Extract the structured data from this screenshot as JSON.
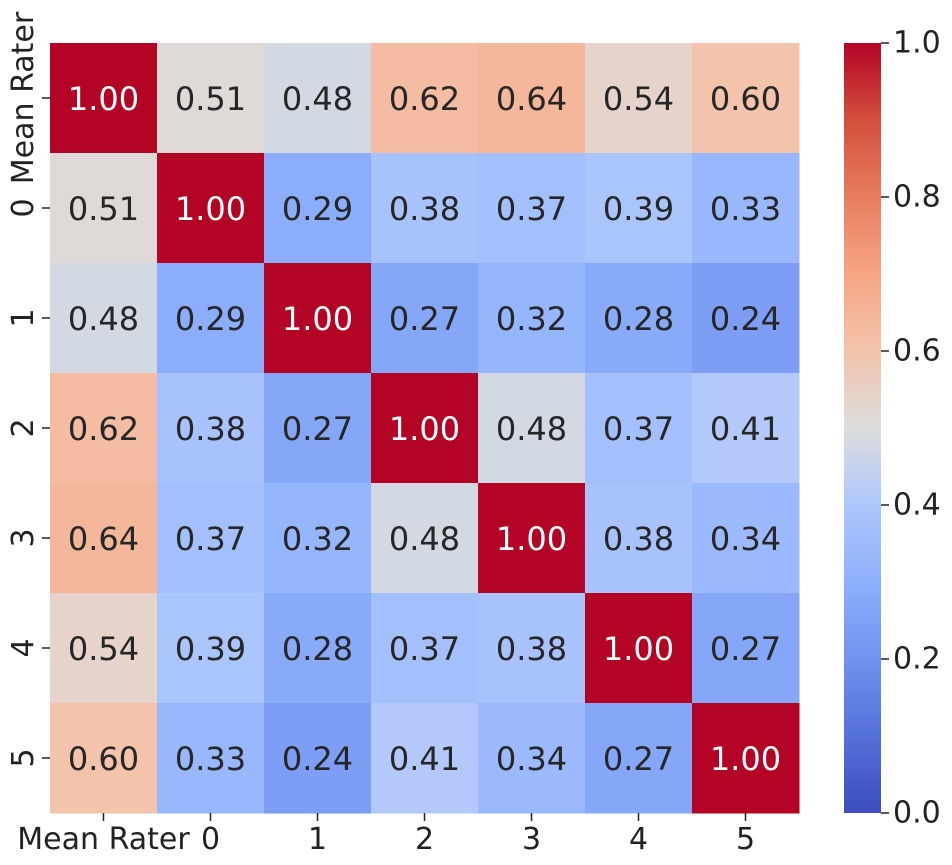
{
  "chart_data": {
    "type": "heatmap",
    "title": "",
    "xlabel": "",
    "ylabel": "",
    "x_labels": [
      "Mean Rater",
      "0",
      "1",
      "2",
      "3",
      "4",
      "5"
    ],
    "y_labels": [
      "Mean Rater",
      "0",
      "1",
      "2",
      "3",
      "4",
      "5"
    ],
    "values": [
      [
        1.0,
        0.51,
        0.48,
        0.62,
        0.64,
        0.54,
        0.6
      ],
      [
        0.51,
        1.0,
        0.29,
        0.38,
        0.37,
        0.39,
        0.33
      ],
      [
        0.48,
        0.29,
        1.0,
        0.27,
        0.32,
        0.28,
        0.24
      ],
      [
        0.62,
        0.38,
        0.27,
        1.0,
        0.48,
        0.37,
        0.41
      ],
      [
        0.64,
        0.37,
        0.32,
        0.48,
        1.0,
        0.38,
        0.34
      ],
      [
        0.54,
        0.39,
        0.28,
        0.37,
        0.38,
        1.0,
        0.27
      ],
      [
        0.6,
        0.33,
        0.24,
        0.41,
        0.34,
        0.27,
        1.0
      ]
    ],
    "value_format": "0.00",
    "colormap": "coolwarm",
    "vmin": 0.0,
    "vmax": 1.0,
    "colorbar": {
      "ticks": [
        0.0,
        0.2,
        0.4,
        0.6,
        0.8,
        1.0
      ],
      "tick_labels": [
        "0.0",
        "0.2",
        "0.4",
        "0.6",
        "0.8",
        "1.0"
      ]
    }
  }
}
